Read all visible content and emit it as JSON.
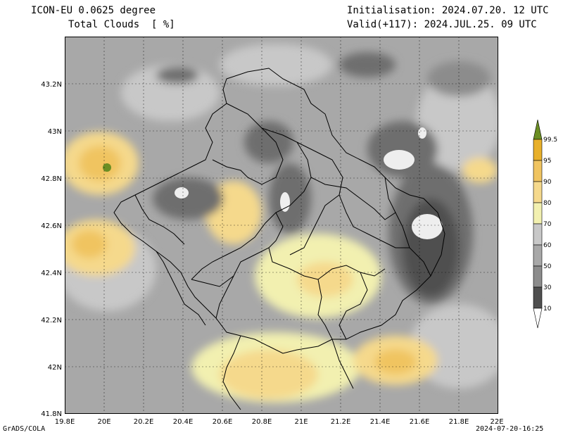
{
  "header": {
    "model": "ICON-EU 0.0625 degree",
    "variable": "Total Clouds  [ %]",
    "initialisation": "Initialisation: 2024.07.20. 12 UTC",
    "valid": "Valid(+117): 2024.JUL.25. 09 UTC"
  },
  "map": {
    "lon_ticks": [
      "19.8E",
      "20E",
      "20.2E",
      "20.4E",
      "20.6E",
      "20.8E",
      "21E",
      "21.2E",
      "21.4E",
      "21.6E",
      "21.8E",
      "22E"
    ],
    "lat_ticks": [
      "41.8N",
      "42N",
      "42.2N",
      "42.4N",
      "42.6N",
      "42.8N",
      "43N",
      "43.2N"
    ],
    "lon_range": [
      19.8,
      22.0
    ],
    "lat_range": [
      41.8,
      43.4
    ],
    "grid": true
  },
  "colorbar": {
    "labels": [
      "99.5",
      "95",
      "90",
      "80",
      "70",
      "60",
      "50",
      "30",
      "10"
    ],
    "colors": [
      "#6b8e23",
      "#e8b02a",
      "#f0c460",
      "#f5d98c",
      "#f2f0b0",
      "#c8c8c8",
      "#a8a8a8",
      "#8c8c8c",
      "#6e6e6e",
      "#4f4f4f",
      "#ffffff"
    ]
  },
  "footer": {
    "left": "GrADS/COLA",
    "right": "2024-07-20-16:25"
  }
}
